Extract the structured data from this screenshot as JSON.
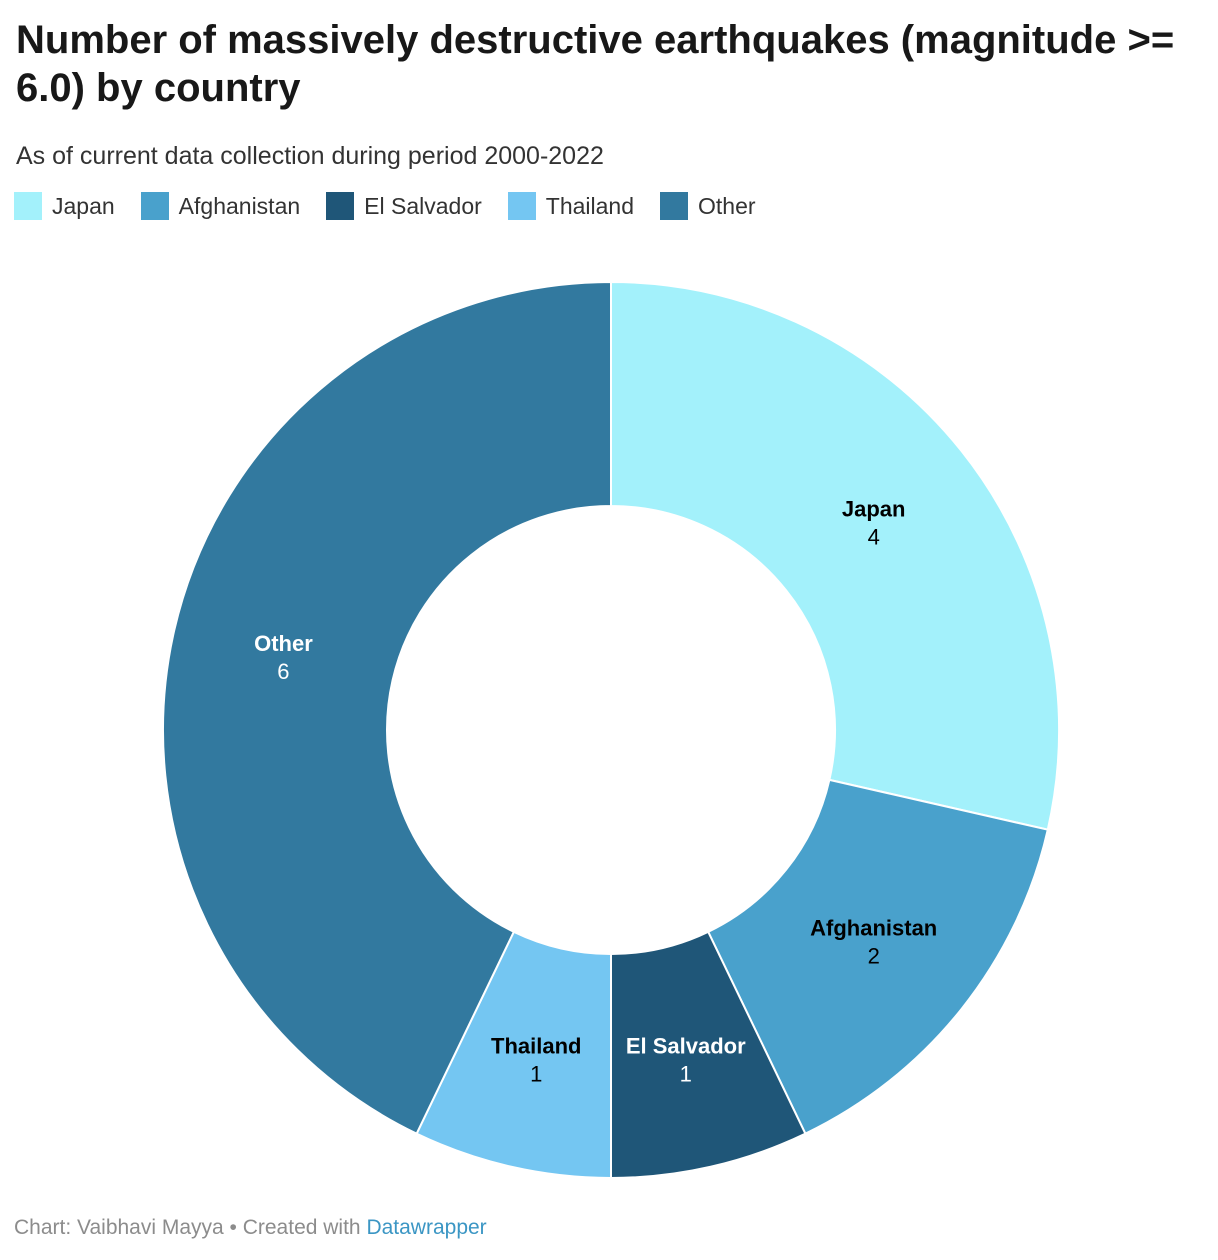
{
  "title": "Number of massively destructive earthquakes (magnitude >= 6.0) by country",
  "subtitle": "As of current data collection during period 2000-2022",
  "legend": [
    {
      "label": "Japan",
      "color": "#a3f1fb"
    },
    {
      "label": "Afghanistan",
      "color": "#49a1cc"
    },
    {
      "label": "El Salvador",
      "color": "#1f5678"
    },
    {
      "label": "Thailand",
      "color": "#74c6f2"
    },
    {
      "label": "Other",
      "color": "#32799f"
    }
  ],
  "chart_data": {
    "type": "pie",
    "donut": true,
    "title": "Number of massively destructive earthquakes (magnitude >= 6.0) by country",
    "subtitle": "As of current data collection during period 2000-2022",
    "categories": [
      "Japan",
      "Afghanistan",
      "El Salvador",
      "Thailand",
      "Other"
    ],
    "values": [
      4,
      2,
      1,
      1,
      6
    ],
    "colors": [
      "#a3f1fb",
      "#49a1cc",
      "#1f5678",
      "#74c6f2",
      "#32799f"
    ],
    "label_colors": [
      "#000000",
      "#000000",
      "#ffffff",
      "#000000",
      "#ffffff"
    ],
    "legend_position": "top-left"
  },
  "footer": {
    "prefix": "Chart: Vaibhavi Mayya • Created with ",
    "link": "Datawrapper"
  }
}
